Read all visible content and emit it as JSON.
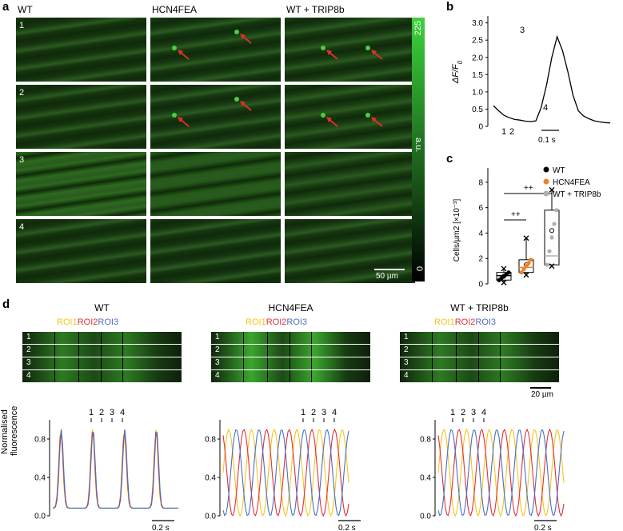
{
  "figure": {
    "panel_a": {
      "letter": "a",
      "columns": [
        "WT",
        "HCN4FEA",
        "WT + TRIP8b"
      ],
      "rows": [
        "1",
        "2",
        "3",
        "4"
      ],
      "colorbar": {
        "top_label": "225",
        "mid_label": "a.u.",
        "bottom_label": "0"
      },
      "scalebar_label": "50 µm"
    },
    "panel_b": {
      "letter": "b",
      "ylabel": "ΔF/F0",
      "yticks": [
        "0",
        "0.5",
        "1.0",
        "1.5",
        "2.0",
        "2.5",
        "3.0"
      ],
      "annotations": [
        "1",
        "2",
        "3",
        "4"
      ],
      "scalebar_label": "0.1 s"
    },
    "panel_c": {
      "letter": "c",
      "ylabel": "Cells/µm2 [×10⁻³]",
      "yticks": [
        "0",
        "2",
        "4",
        "6",
        "8"
      ],
      "sig_labels": [
        "++",
        "++"
      ],
      "legend": [
        {
          "label": "WT",
          "color": "#000000"
        },
        {
          "label": "HCN4FEA",
          "color": "#e8842a"
        },
        {
          "label": "WT + TRIP8b",
          "color": "#b0b0b0"
        }
      ]
    },
    "panel_d": {
      "letter": "d",
      "groups": [
        {
          "title": "WT",
          "roi1": "ROI1",
          "roi2": "ROI2",
          "roi3": "ROI3"
        },
        {
          "title": "HCN4FEA",
          "roi1": "ROI1",
          "roi2": "ROI2",
          "roi3": "ROI3"
        },
        {
          "title": "WT + TRIP8b",
          "roi1": "ROI1",
          "roi2": "ROI2",
          "roi3": "ROI3"
        }
      ],
      "strip_rows": [
        "1",
        "2",
        "3",
        "4"
      ],
      "strip_scalebar_label": "20 µm",
      "trace_ylabel_line1": "Normalised",
      "trace_ylabel_line2": "fluorescence",
      "trace_yticks": [
        "0.0",
        "0.4",
        "0.8"
      ],
      "trace_markers": [
        "1",
        "2",
        "3",
        "4"
      ],
      "trace_scalebar_label": "0.2 s",
      "roi_colors": {
        "ROI1": "#f5c518",
        "ROI2": "#e0303a",
        "ROI3": "#4a6fc4"
      }
    }
  },
  "chart_data": [
    {
      "type": "line",
      "panel": "b",
      "ylabel": "ΔF/F0",
      "ylim": [
        0,
        3.2
      ],
      "x": [
        0,
        1,
        2,
        3,
        4,
        5,
        6,
        7,
        8,
        9,
        10,
        11,
        12,
        13,
        14,
        15,
        16,
        17,
        18,
        19,
        20,
        21,
        22
      ],
      "series": [
        {
          "values": [
            0.6,
            0.45,
            0.32,
            0.25,
            0.2,
            0.18,
            0.15,
            0.14,
            0.16,
            0.55,
            1.2,
            2.0,
            2.6,
            2.2,
            1.6,
            0.9,
            0.45,
            0.3,
            0.22,
            0.16,
            0.13,
            0.11,
            0.1
          ]
        }
      ]
    },
    {
      "type": "box",
      "panel": "c",
      "ylabel": "Cells/µm2 [×10⁻³]",
      "ylim": [
        0,
        9
      ],
      "categories": [
        "WT",
        "HCN4FEA",
        "WT + TRIP8b"
      ],
      "boxes": [
        {
          "q1": 0.3,
          "median": 0.65,
          "q3": 0.9,
          "min": 0.1,
          "max": 1.2,
          "mean": 0.6
        },
        {
          "q1": 0.9,
          "median": 1.3,
          "q3": 1.9,
          "min": 0.7,
          "max": 3.6,
          "mean": 1.5
        },
        {
          "q1": 1.5,
          "median": 2.2,
          "q3": 5.8,
          "min": 1.4,
          "max": 7.4,
          "mean": 4.2
        }
      ]
    }
  ]
}
